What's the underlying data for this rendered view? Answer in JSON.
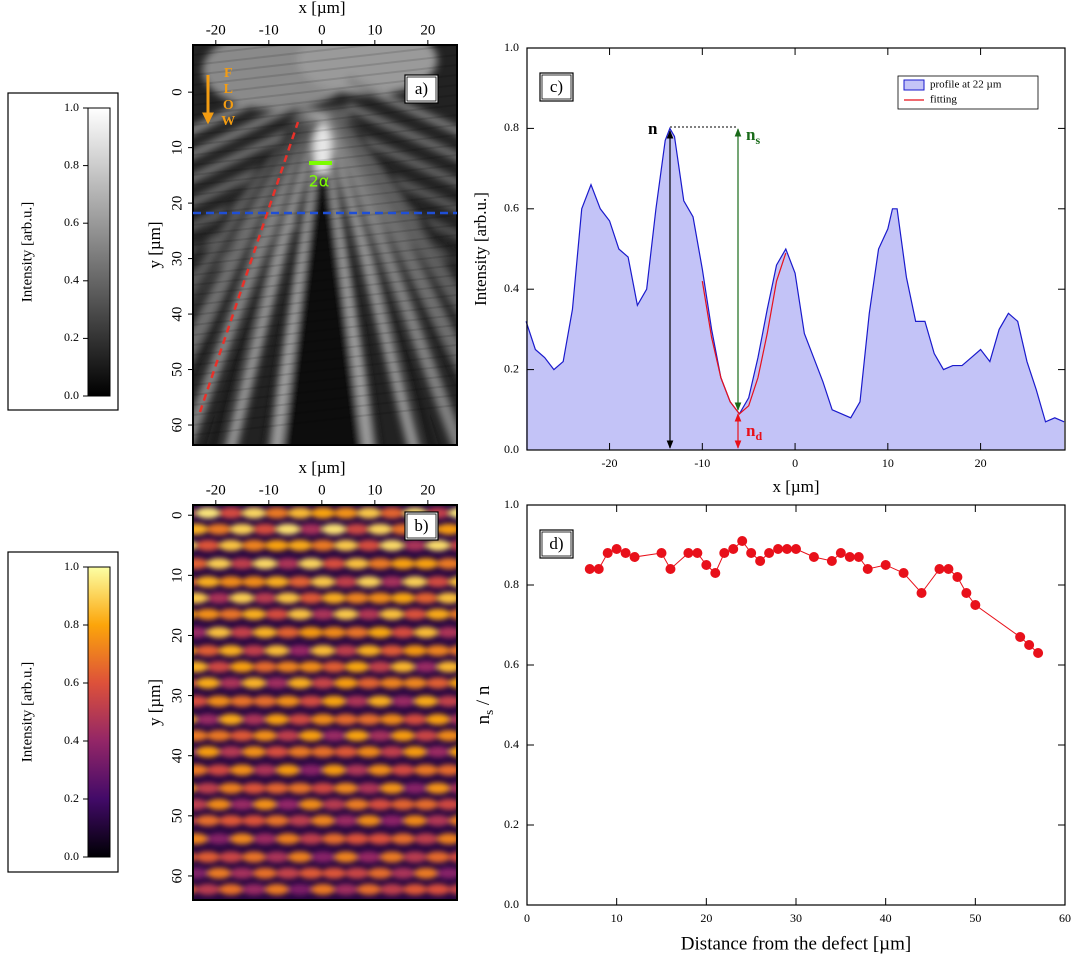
{
  "chart_data": [
    {
      "type": "colorbar",
      "label": "Intensity [arb.u.]",
      "colormap": "gray",
      "ylim": [
        0,
        1
      ],
      "yticks": [
        {
          "value": 0,
          "label": "0.0"
        },
        {
          "value": 0.2,
          "label": "0.2"
        },
        {
          "value": 0.4,
          "label": "0.4"
        },
        {
          "value": 0.6,
          "label": "0.6"
        },
        {
          "value": 0.8,
          "label": "0.8"
        },
        {
          "value": 1,
          "label": "1.0"
        }
      ]
    },
    {
      "type": "image",
      "panel_label": "a)",
      "xlabel": "x [µm]",
      "ylabel": "y [µm]",
      "colormap": "gray",
      "xlim": [
        -24.3,
        25.5
      ],
      "ylim": [
        63.6,
        -8.5
      ],
      "xticks": [
        -20,
        -10,
        0,
        10,
        20
      ],
      "yticks": [
        0,
        10,
        20,
        30,
        40,
        50,
        60
      ],
      "flow_label": "FLOW",
      "width_label": "2α"
    },
    {
      "type": "area",
      "panel_label": "c)",
      "xlabel": "x [µm]",
      "ylabel": "Intensity [arb.u.]",
      "xlim": [
        -28.9,
        29.1
      ],
      "ylim": [
        0,
        1
      ],
      "xticks": [
        -20,
        -10,
        0,
        10,
        20
      ],
      "yticks": [
        {
          "value": 0,
          "label": "0.0"
        },
        {
          "value": 0.2,
          "label": "0.2"
        },
        {
          "value": 0.4,
          "label": "0.4"
        },
        {
          "value": 0.6,
          "label": "0.6"
        },
        {
          "value": 0.8,
          "label": "0.8"
        },
        {
          "value": 1,
          "label": "1.0"
        }
      ],
      "legend": "upper right",
      "series": [
        {
          "name": "profile at 22 µm",
          "color": "#1a1acc",
          "fill": "#c3c3f7",
          "x": [
            -29,
            -28,
            -27,
            -26,
            -25,
            -24,
            -23,
            -22,
            -21,
            -20,
            -19,
            -18,
            -17,
            -16,
            -15,
            -14,
            -13.5,
            -13,
            -12,
            -11,
            -10,
            -9,
            -8,
            -7,
            -6,
            -5,
            -4,
            -3,
            -2,
            -1,
            0,
            1,
            2,
            3,
            4,
            5,
            6,
            7,
            8,
            9,
            10,
            10.5,
            11,
            12,
            13,
            14,
            15,
            16,
            17,
            18,
            19,
            20,
            21,
            22,
            23,
            24,
            25,
            26,
            27,
            28,
            29
          ],
          "values": [
            0.32,
            0.25,
            0.23,
            0.2,
            0.22,
            0.35,
            0.6,
            0.66,
            0.6,
            0.57,
            0.5,
            0.48,
            0.36,
            0.4,
            0.6,
            0.77,
            0.8,
            0.78,
            0.62,
            0.58,
            0.45,
            0.3,
            0.18,
            0.12,
            0.09,
            0.13,
            0.23,
            0.35,
            0.46,
            0.5,
            0.44,
            0.29,
            0.23,
            0.17,
            0.1,
            0.09,
            0.08,
            0.12,
            0.34,
            0.5,
            0.55,
            0.6,
            0.6,
            0.43,
            0.32,
            0.32,
            0.24,
            0.2,
            0.21,
            0.21,
            0.23,
            0.25,
            0.22,
            0.3,
            0.34,
            0.32,
            0.22,
            0.15,
            0.07,
            0.08,
            0.07
          ]
        },
        {
          "name": "fitting",
          "color": "#e8101a",
          "x": [
            -10,
            -9,
            -8,
            -7,
            -6,
            -5,
            -4,
            -3,
            -2,
            -1
          ],
          "values": [
            0.42,
            0.28,
            0.18,
            0.12,
            0.09,
            0.11,
            0.18,
            0.29,
            0.42,
            0.49
          ]
        }
      ],
      "annotations": [
        {
          "text": "n",
          "color": "#000000"
        },
        {
          "text": "n",
          "sub": "s",
          "color": "#1a6b1a"
        },
        {
          "text": "n",
          "sub": "d",
          "color": "#e8101a"
        }
      ]
    },
    {
      "type": "colorbar",
      "label": "Intensity [arb.u.]",
      "colormap": "inferno",
      "ylim": [
        0,
        1
      ],
      "yticks": [
        {
          "value": 0,
          "label": "0.0"
        },
        {
          "value": 0.2,
          "label": "0.2"
        },
        {
          "value": 0.4,
          "label": "0.4"
        },
        {
          "value": 0.6,
          "label": "0.6"
        },
        {
          "value": 0.8,
          "label": "0.8"
        },
        {
          "value": 1,
          "label": "1.0"
        }
      ]
    },
    {
      "type": "image",
      "panel_label": "b)",
      "xlabel": "x [µm]",
      "ylabel": "y [µm]",
      "colormap": "inferno",
      "xlim": [
        -24.3,
        25.5
      ],
      "ylim": [
        64,
        -1.7
      ],
      "xticks": [
        -20,
        -10,
        0,
        10,
        20
      ],
      "yticks": [
        0,
        10,
        20,
        30,
        40,
        50,
        60
      ]
    },
    {
      "type": "line",
      "panel_label": "d)",
      "xlabel": "Distance from the defect [µm]",
      "ylabel": {
        "text": "n",
        "sub": "s",
        "tail": " / n"
      },
      "xlim": [
        0,
        60
      ],
      "ylim": [
        0,
        1
      ],
      "xticks": [
        0,
        10,
        20,
        30,
        40,
        50,
        60
      ],
      "yticks": [
        {
          "value": 0,
          "label": "0.0"
        },
        {
          "value": 0.2,
          "label": "0.2"
        },
        {
          "value": 0.4,
          "label": "0.4"
        },
        {
          "value": 0.6,
          "label": "0.6"
        },
        {
          "value": 0.8,
          "label": "0.8"
        },
        {
          "value": 1,
          "label": "1.0"
        }
      ],
      "color": "#e8101a",
      "x": [
        7,
        8,
        9,
        10,
        11,
        12,
        15,
        16,
        18,
        19,
        20,
        21,
        22,
        23,
        24,
        25,
        26,
        27,
        28,
        29,
        30,
        32,
        34,
        35,
        36,
        37,
        38,
        40,
        42,
        44,
        46,
        47,
        48,
        49,
        50,
        55,
        56,
        57
      ],
      "values": [
        0.84,
        0.84,
        0.88,
        0.89,
        0.88,
        0.87,
        0.88,
        0.84,
        0.88,
        0.88,
        0.85,
        0.83,
        0.88,
        0.89,
        0.91,
        0.88,
        0.86,
        0.88,
        0.89,
        0.89,
        0.89,
        0.87,
        0.86,
        0.88,
        0.87,
        0.87,
        0.84,
        0.85,
        0.83,
        0.78,
        0.84,
        0.84,
        0.82,
        0.78,
        0.75,
        0.67,
        0.65,
        0.63
      ]
    }
  ]
}
